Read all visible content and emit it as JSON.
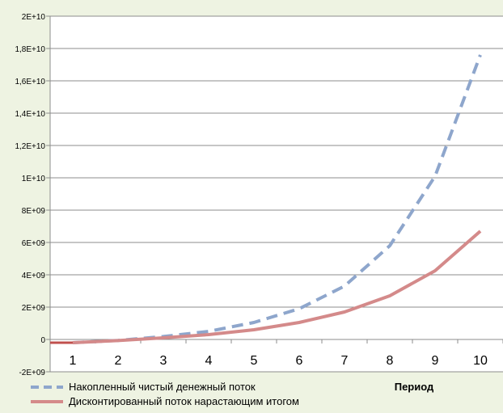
{
  "chart_data": {
    "type": "line",
    "categories": [
      "1",
      "2",
      "3",
      "4",
      "5",
      "6",
      "7",
      "8",
      "9",
      "10"
    ],
    "series": [
      {
        "name": "Накопленный чистый денежный поток",
        "color": "#8ea6cc",
        "dash": "dashed",
        "values": [
          -200000000,
          -60000000,
          180000000,
          500000000,
          1050000000,
          1900000000,
          3300000000,
          5800000000,
          10100000000,
          17600000000
        ]
      },
      {
        "name": "Дисконтированный поток нарастающим итогом",
        "color": "#d48a8a",
        "dash": "solid",
        "values": [
          -200000000,
          -70000000,
          100000000,
          300000000,
          600000000,
          1050000000,
          1700000000,
          2700000000,
          4250000000,
          6700000000
        ]
      }
    ],
    "start_segment_color": "#c0504d",
    "ylim": [
      -2000000000,
      20000000000
    ],
    "yticks": [
      -2000000000,
      0,
      2000000000,
      4000000000,
      6000000000,
      8000000000,
      10000000000,
      12000000000,
      14000000000,
      16000000000,
      18000000000,
      20000000000
    ],
    "ytick_labels": [
      "-2E+09",
      "0",
      "2E+09",
      "4E+09",
      "6E+09",
      "8E+09",
      "1E+10",
      "1,2E+10",
      "1,4E+10",
      "1,6E+10",
      "1,8E+10",
      "2E+10"
    ],
    "xlabel": "Период",
    "grid": "horizontal",
    "legend_position": "bottom-left"
  }
}
